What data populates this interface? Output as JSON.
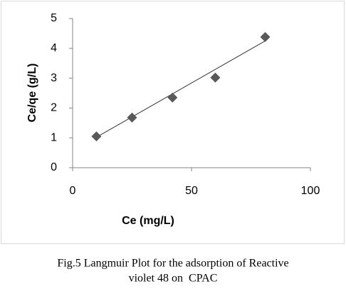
{
  "chart_data": {
    "type": "scatter",
    "x_label": "Ce (mg/L)",
    "y_label": "Ce/qe (g/L)",
    "x": [
      10,
      25,
      42,
      60,
      81
    ],
    "values": [
      1.05,
      1.68,
      2.35,
      3.02,
      4.38
    ],
    "color": "#595959",
    "trendline": {
      "x": [
        10,
        81
      ],
      "values": [
        1.02,
        4.25
      ],
      "color": "#333333"
    },
    "xlim": [
      0,
      100
    ],
    "xticks": [
      0,
      50,
      100
    ],
    "ylim": [
      0,
      5
    ],
    "yticks": [
      0,
      1,
      2,
      3,
      4,
      5
    ],
    "grid": false,
    "caption": [
      "Fig.5 Langmuir Plot for the adsorption of Reactive",
      "violet 48 on  CPAC"
    ]
  }
}
